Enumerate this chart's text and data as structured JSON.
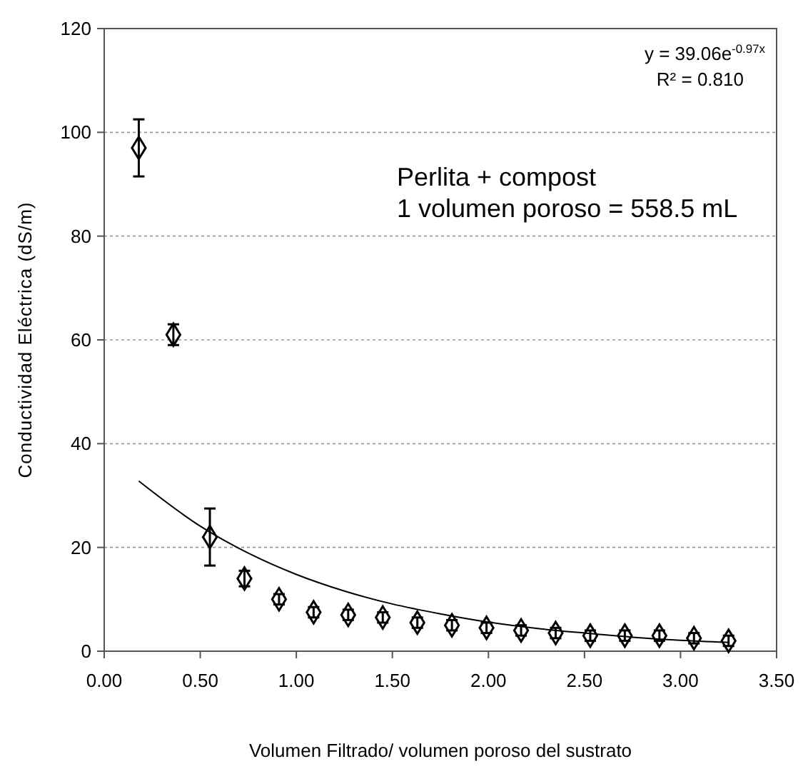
{
  "chart_data": {
    "type": "scatter",
    "xlabel": "Volumen Filtrado/ volumen poroso del sustrato",
    "ylabel": "Conductividad Eléctrica (dS/m)",
    "xlim": [
      0,
      3.5
    ],
    "xticks": [
      {
        "value": 0,
        "label": "0.00"
      },
      {
        "value": 0.5,
        "label": "0.50"
      },
      {
        "value": 1,
        "label": "1.00"
      },
      {
        "value": 1.5,
        "label": "1.50"
      },
      {
        "value": 2,
        "label": "2.00"
      },
      {
        "value": 2.5,
        "label": "2.50"
      },
      {
        "value": 3,
        "label": "3.00"
      },
      {
        "value": 3.5,
        "label": "3.50"
      }
    ],
    "ylim": [
      0,
      120
    ],
    "yticks": [
      0,
      20,
      40,
      60,
      80,
      100,
      120
    ],
    "grid": "y",
    "marker": "diamond",
    "series": [
      {
        "color": "#000000",
        "x": [
          0.18,
          0.36,
          0.55,
          0.73,
          0.91,
          1.09,
          1.27,
          1.45,
          1.63,
          1.81,
          1.99,
          2.17,
          2.35,
          2.53,
          2.71,
          2.89,
          3.07,
          3.25
        ],
        "values": [
          97,
          61,
          22,
          14,
          10,
          7.5,
          7,
          6.5,
          5.5,
          5,
          4.5,
          4,
          3.5,
          3,
          3,
          3,
          2.5,
          2
        ],
        "errors": [
          5.5,
          2,
          5.5,
          1.5,
          1,
          1,
          1,
          1,
          1,
          1,
          1,
          1,
          1,
          1,
          1,
          1,
          1,
          1
        ]
      },
      {
        "type": "line",
        "color": "#000000",
        "marker": "none",
        "x": [
          0.18,
          0.5,
          0.75,
          1,
          1.25,
          1.5,
          1.75,
          2,
          2.25,
          2.5,
          2.75,
          3,
          3.25
        ],
        "values": [
          32.8,
          24.1,
          18.9,
          14.8,
          11.6,
          9.1,
          7.2,
          5.6,
          4.4,
          3.5,
          2.7,
          2.1,
          1.7
        ]
      }
    ],
    "annotations": [
      "y = 39.06e$^{-0.97x}$",
      "R² = 0.810",
      "Perlita + compost",
      "1 volumen poroso = 558.5 mL"
    ]
  }
}
